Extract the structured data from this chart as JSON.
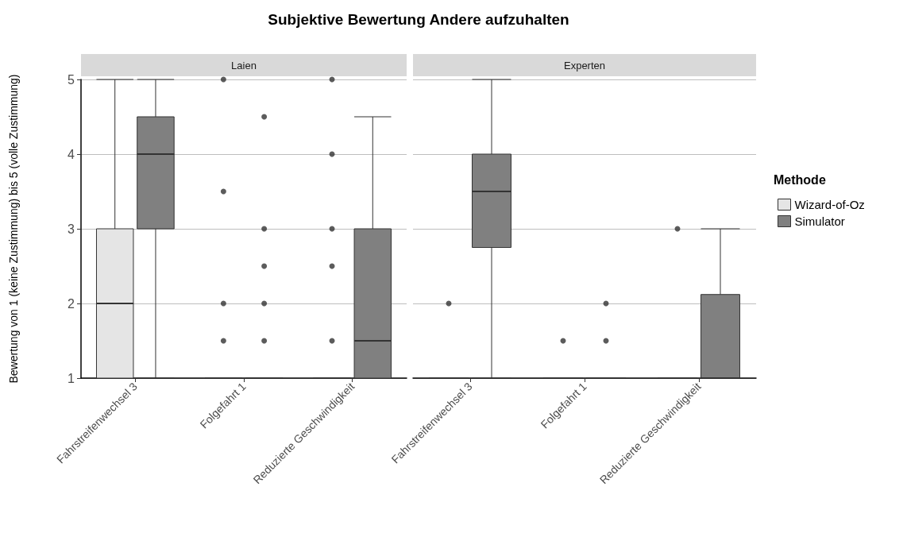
{
  "chart_data": [
    {
      "type": "box",
      "title": "Subjektive Bewertung Andere aufzuhalten",
      "subtitle": "Laien",
      "ylabel": "Bewertung von 1 (keine Zustimmung) bis 5 (volle Zustimmung)",
      "categories": [
        "Fahrstreifenwechsel 3",
        "Folgefahrt 1",
        "Reduzierte Geschwindigkeit"
      ],
      "ylim": [
        1,
        5
      ],
      "yticks": [
        1,
        2,
        3,
        4,
        5
      ],
      "grid": "y",
      "series": [
        {
          "color": "#e5e5e5",
          "boxes": [
            {
              "low": 1,
              "q1": 1,
              "median": 2,
              "q3": 3,
              "high": 5
            },
            {
              "low": 1,
              "q1": 1,
              "median": 1,
              "q3": 1,
              "high": 1,
              "outliers": [
                5,
                3.5,
                2,
                1.5
              ]
            },
            {
              "low": 1,
              "q1": 1,
              "median": 1,
              "q3": 1,
              "high": 1,
              "outliers": [
                5,
                4,
                3,
                2.5,
                1.5
              ]
            }
          ]
        },
        {
          "color": "#808080",
          "boxes": [
            {
              "low": 1,
              "q1": 3,
              "median": 4,
              "q3": 4.5,
              "high": 5
            },
            {
              "low": 1,
              "q1": 1,
              "median": 1,
              "q3": 1,
              "high": 1,
              "outliers": [
                4.5,
                3,
                2.5,
                2,
                1.5
              ]
            },
            {
              "low": 1,
              "q1": 1,
              "median": 1.5,
              "q3": 3,
              "high": 4.5
            }
          ]
        }
      ]
    },
    {
      "type": "box",
      "subtitle": "Experten",
      "categories": [
        "Fahrstreifenwechsel 3",
        "Folgefahrt 1",
        "Reduzierte Geschwindigkeit"
      ],
      "ylim": [
        1,
        5
      ],
      "yticks": [
        1,
        2,
        3,
        4,
        5
      ],
      "grid": "y",
      "tick_labels": "x",
      "legend": "right",
      "legend_title": "Methode",
      "series": [
        {
          "name": "Wizard-of-Oz",
          "color": "#e5e5e5",
          "boxes": [
            {
              "low": 1,
              "q1": 1,
              "median": 1,
              "q3": 1,
              "high": 1,
              "outliers": [
                2
              ]
            },
            {
              "low": 1,
              "q1": 1,
              "median": 1,
              "q3": 1,
              "high": 1,
              "outliers": [
                1.5
              ]
            },
            {
              "low": 1,
              "q1": 1,
              "median": 1,
              "q3": 1,
              "high": 1,
              "outliers": [
                3
              ]
            }
          ]
        },
        {
          "name": "Simulator",
          "color": "#808080",
          "boxes": [
            {
              "low": 1,
              "q1": 2.75,
              "median": 3.5,
              "q3": 4,
              "high": 5
            },
            {
              "low": 1,
              "q1": 1,
              "median": 1,
              "q3": 1,
              "high": 1,
              "outliers": [
                2,
                1.5
              ]
            },
            {
              "low": 1,
              "q1": 1,
              "median": 1,
              "q3": 2.12,
              "high": 3
            }
          ]
        }
      ]
    }
  ]
}
